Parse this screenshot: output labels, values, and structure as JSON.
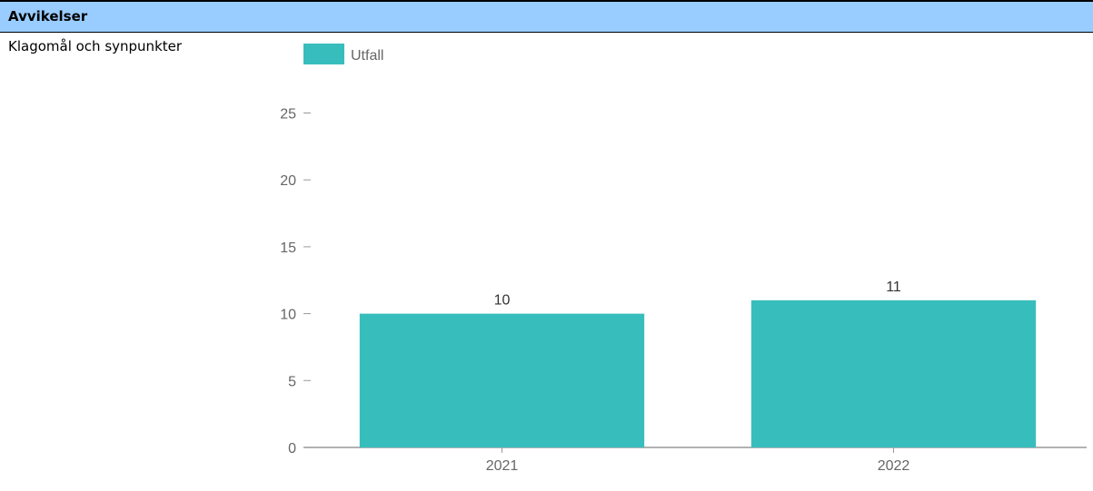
{
  "section": {
    "title": "Avvikelser",
    "header_color": "#99ccff"
  },
  "row": {
    "label": "Klagomål och synpunkter"
  },
  "chart_data": {
    "type": "bar",
    "categories": [
      "2021",
      "2022"
    ],
    "series": [
      {
        "name": "Utfall",
        "values": [
          10,
          11
        ],
        "color": "#38bdbd"
      }
    ],
    "ylim": [
      0,
      25
    ],
    "yticks": [
      0,
      5,
      10,
      15,
      20,
      25
    ],
    "grid": false,
    "legend": "top-left",
    "data_labels": true
  }
}
